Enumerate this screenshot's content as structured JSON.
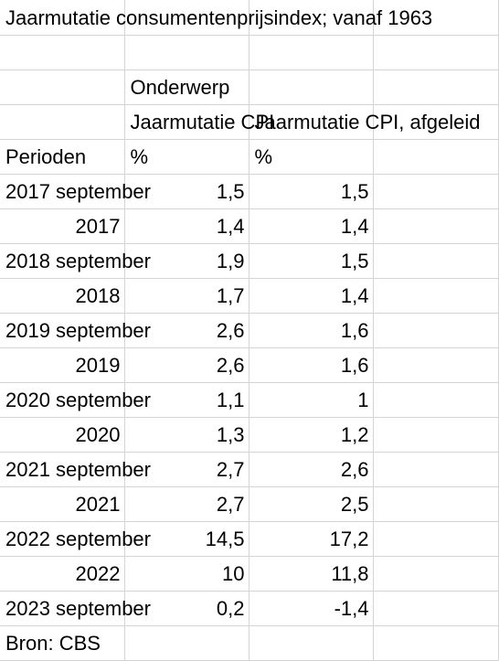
{
  "title": "Jaarmutatie consumentenprijsindex; vanaf 1963",
  "onderwerp_label": "Onderwerp",
  "col_headers": [
    "Jaarmutatie CPI",
    "Jaarmutatie CPI, afgeleid"
  ],
  "perioden_label": "Perioden",
  "units": [
    "%",
    "%"
  ],
  "rows": [
    {
      "period": "2017 september",
      "v1": "1,5",
      "v2": "1,5"
    },
    {
      "period": "2017",
      "v1": "1,4",
      "v2": "1,4"
    },
    {
      "period": "2018 september",
      "v1": "1,9",
      "v2": "1,5"
    },
    {
      "period": "2018",
      "v1": "1,7",
      "v2": "1,4"
    },
    {
      "period": "2019 september",
      "v1": "2,6",
      "v2": "1,6"
    },
    {
      "period": "2019",
      "v1": "2,6",
      "v2": "1,6"
    },
    {
      "period": "2020 september",
      "v1": "1,1",
      "v2": "1"
    },
    {
      "period": "2020",
      "v1": "1,3",
      "v2": "1,2"
    },
    {
      "period": "2021 september",
      "v1": "2,7",
      "v2": "2,6"
    },
    {
      "period": "2021",
      "v1": "2,7",
      "v2": "2,5"
    },
    {
      "period": "2022 september",
      "v1": "14,5",
      "v2": "17,2"
    },
    {
      "period": "2022",
      "v1": "10",
      "v2": "11,8"
    },
    {
      "period": "2023 september",
      "v1": "0,2",
      "v2": "-1,4"
    }
  ],
  "source": "Bron: CBS"
}
